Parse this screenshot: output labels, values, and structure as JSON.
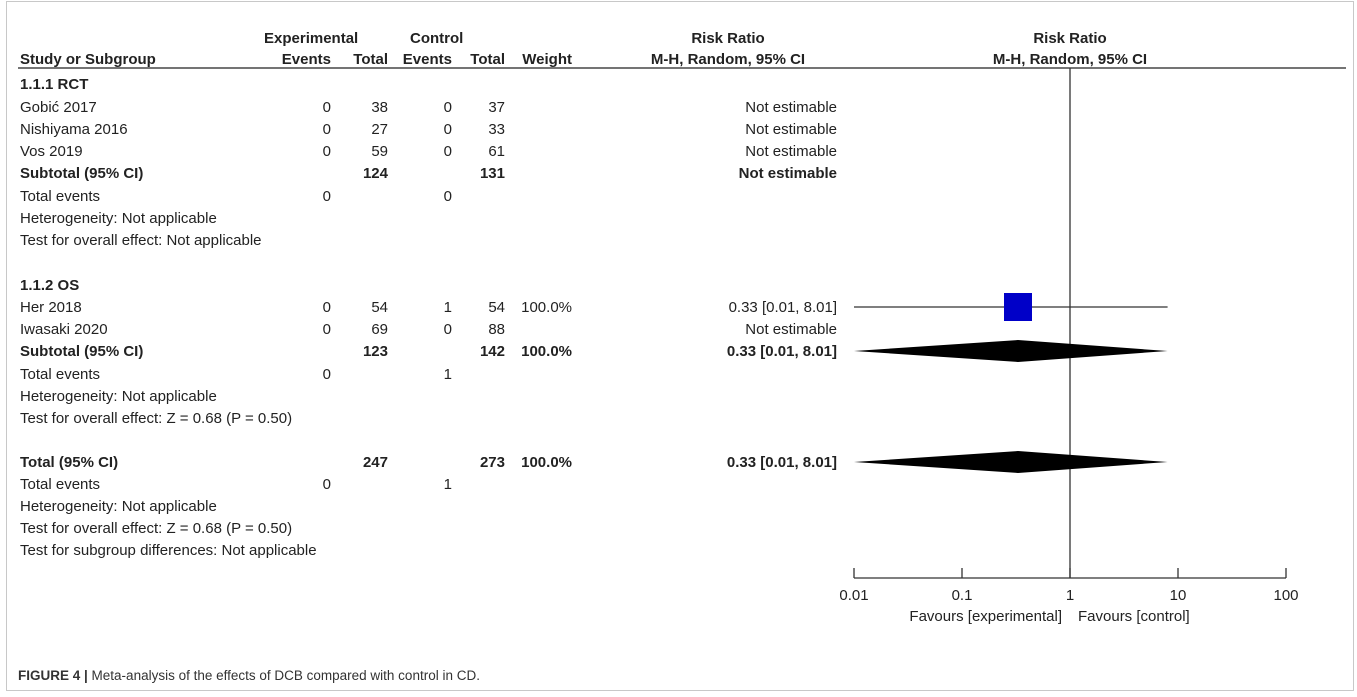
{
  "header": {
    "group_experimental": "Experimental",
    "group_control": "Control",
    "col_rr": "Risk Ratio",
    "col_rr_method": "M-H, Random, 95% CI",
    "plot_title": "Risk Ratio",
    "plot_method": "M-H, Random, 95% CI",
    "study": "Study or Subgroup",
    "events": "Events",
    "total": "Total",
    "weight": "Weight"
  },
  "rows": [
    {
      "kind": "subgroup",
      "label": "1.1.1 RCT"
    },
    {
      "kind": "study",
      "label": "Gobić 2017",
      "e_events": "0",
      "e_total": "38",
      "c_events": "0",
      "c_total": "37",
      "weight": "",
      "ci": "Not estimable"
    },
    {
      "kind": "study",
      "label": "Nishiyama 2016",
      "e_events": "0",
      "e_total": "27",
      "c_events": "0",
      "c_total": "33",
      "weight": "",
      "ci": "Not estimable"
    },
    {
      "kind": "study",
      "label": "Vos 2019",
      "e_events": "0",
      "e_total": "59",
      "c_events": "0",
      "c_total": "61",
      "weight": "",
      "ci": "Not estimable"
    },
    {
      "kind": "subtotal",
      "label": "Subtotal (95% CI)",
      "e_total": "124",
      "c_total": "131",
      "weight": "",
      "ci": "Not estimable"
    },
    {
      "kind": "events",
      "label": "Total events",
      "e_events": "0",
      "c_events": "0"
    },
    {
      "kind": "note",
      "label": "Heterogeneity: Not applicable"
    },
    {
      "kind": "note",
      "label": "Test for overall effect: Not applicable"
    },
    {
      "kind": "subgroup",
      "label": "1.1.2 OS"
    },
    {
      "kind": "study",
      "label": "Her 2018",
      "e_events": "0",
      "e_total": "54",
      "c_events": "1",
      "c_total": "54",
      "weight": "100.0%",
      "ci": "0.33 [0.01, 8.01]"
    },
    {
      "kind": "study",
      "label": "Iwasaki 2020",
      "e_events": "0",
      "e_total": "69",
      "c_events": "0",
      "c_total": "88",
      "weight": "",
      "ci": "Not estimable"
    },
    {
      "kind": "subtotal",
      "label": "Subtotal (95% CI)",
      "e_total": "123",
      "c_total": "142",
      "weight": "100.0%",
      "ci": "0.33 [0.01, 8.01]"
    },
    {
      "kind": "events",
      "label": "Total events",
      "e_events": "0",
      "c_events": "1"
    },
    {
      "kind": "note",
      "label": "Heterogeneity: Not applicable"
    },
    {
      "kind": "note",
      "label": "Test for overall effect: Z = 0.68 (P = 0.50)"
    },
    {
      "kind": "subtotal",
      "label": "Total (95% CI)",
      "e_total": "247",
      "c_total": "273",
      "weight": "100.0%",
      "ci": "0.33 [0.01, 8.01]"
    },
    {
      "kind": "events",
      "label": "Total events",
      "e_events": "0",
      "c_events": "1"
    },
    {
      "kind": "note",
      "label": "Heterogeneity: Not applicable"
    },
    {
      "kind": "note",
      "label": "Test for overall effect: Z = 0.68 (P = 0.50)"
    },
    {
      "kind": "note",
      "label": "Test for subgroup differences: Not applicable"
    }
  ],
  "chart_data": {
    "type": "forest",
    "scale": "log",
    "x_ticks": [
      "0.01",
      "0.1",
      "1",
      "10",
      "100"
    ],
    "xlim": [
      0.01,
      100
    ],
    "reference_line": 1,
    "favours_left": "Favours [experimental]",
    "favours_right": "Favours [control]",
    "marker_color": "#0000c8",
    "diamond_color": "#000000",
    "estimates": [
      {
        "row": 9,
        "study": "Her 2018",
        "rr": 0.33,
        "lower": 0.01,
        "upper": 8.01,
        "weight_pct": 100.0
      },
      {
        "row": 11,
        "study": "Subtotal (95% CI)",
        "rr": 0.33,
        "lower": 0.01,
        "upper": 8.01,
        "diamond": true
      },
      {
        "row": 15,
        "study": "Total (95% CI)",
        "rr": 0.33,
        "lower": 0.01,
        "upper": 8.01,
        "diamond": true
      }
    ]
  },
  "caption": {
    "label": "FIGURE 4 |",
    "text": " Meta-analysis of the effects of DCB compared with control in CD."
  }
}
